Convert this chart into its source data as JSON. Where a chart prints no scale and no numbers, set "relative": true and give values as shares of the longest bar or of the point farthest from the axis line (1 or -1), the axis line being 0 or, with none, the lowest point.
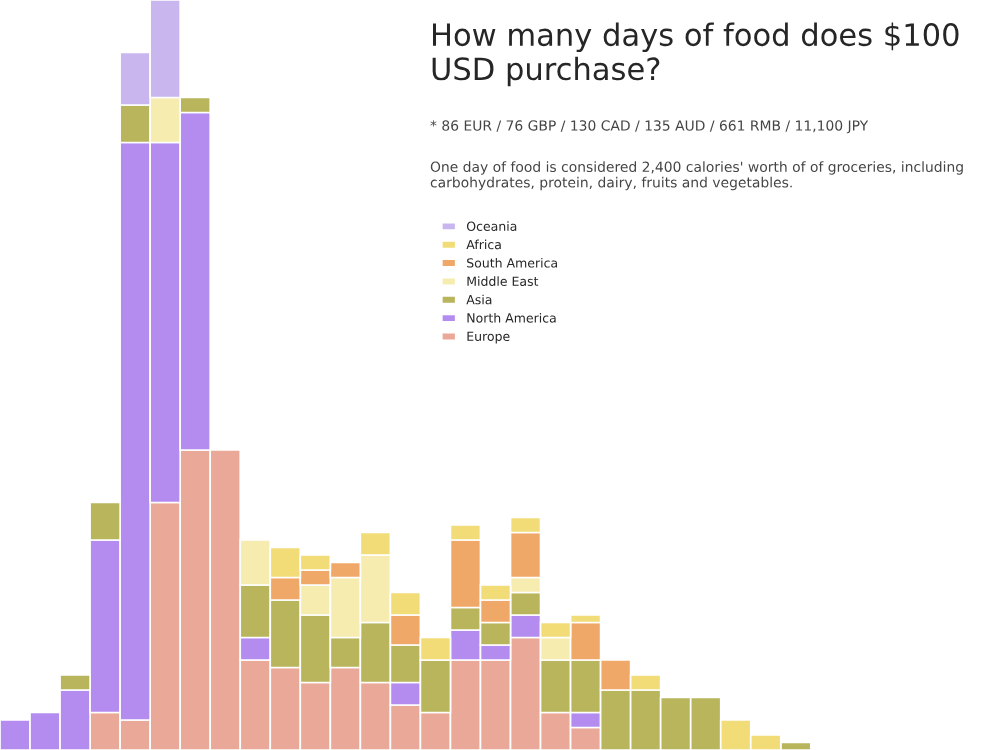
{
  "chart_data": {
    "type": "bar",
    "stacked": true,
    "relative": true,
    "title": "How many days of food does $100 USD purchase?",
    "annotations": [
      "* 86 EUR / 76 GBP / 130 CAD / 135 AUD / 661 RMB / 11,100 JPY",
      "One day of food is considered 2,400 calories' worth of of groceries, including carbohydrates, protein, dairy, fruits and vegetables."
    ],
    "categories": [
      null,
      null,
      null,
      null,
      null,
      null,
      null,
      null,
      null,
      null,
      null,
      null,
      null,
      null,
      null,
      null,
      null,
      null,
      null,
      null,
      null,
      null,
      null,
      null,
      null,
      null,
      null
    ],
    "legend": "top",
    "grid": false,
    "series": [
      {
        "name": "Europe",
        "color": "#eaa898",
        "values": [
          0,
          0,
          0,
          0.05,
          0.04,
          0.33,
          0.4,
          0.4,
          0.12,
          0.11,
          0.09,
          0.11,
          0.09,
          0.06,
          0.05,
          0.12,
          0.12,
          0.15,
          0.05,
          0.03,
          0,
          0,
          0,
          0,
          0,
          0,
          0
        ]
      },
      {
        "name": "North America",
        "color": "#b48cf0",
        "values": [
          0.04,
          0.05,
          0.08,
          0.23,
          0.77,
          0.48,
          0.45,
          0,
          0.03,
          0,
          0,
          0,
          0,
          0.03,
          0,
          0.04,
          0.02,
          0.03,
          0,
          0.02,
          0,
          0,
          0,
          0,
          0,
          0,
          0
        ]
      },
      {
        "name": "Asia",
        "color": "#b8b55c",
        "values": [
          0,
          0,
          0.02,
          0.05,
          0.05,
          0,
          0.02,
          0,
          0.07,
          0.09,
          0.09,
          0.04,
          0.08,
          0.05,
          0.07,
          0.03,
          0.03,
          0.03,
          0.07,
          0.07,
          0.08,
          0.08,
          0.07,
          0.07,
          0,
          0,
          0.01
        ]
      },
      {
        "name": "Middle East",
        "color": "#f7ecb0",
        "values": [
          0,
          0,
          0,
          0,
          0,
          0.06,
          0,
          0,
          0.06,
          0,
          0.04,
          0.08,
          0.09,
          0,
          0,
          0,
          0,
          0.02,
          0.03,
          0,
          0,
          0,
          0,
          0,
          0,
          0,
          0
        ]
      },
      {
        "name": "South America",
        "color": "#f0a868",
        "values": [
          0,
          0,
          0,
          0,
          0,
          0,
          0,
          0,
          0,
          0.03,
          0.02,
          0.02,
          0,
          0.04,
          0,
          0.09,
          0.03,
          0.06,
          0,
          0.05,
          0.04,
          0,
          0,
          0,
          0,
          0,
          0
        ]
      },
      {
        "name": "Africa",
        "color": "#f2dc78",
        "values": [
          0,
          0,
          0,
          0,
          0,
          0,
          0,
          0,
          0,
          0.04,
          0.02,
          0,
          0.03,
          0.03,
          0.03,
          0.02,
          0.02,
          0.02,
          0.02,
          0.01,
          0,
          0.02,
          0,
          0,
          0.04,
          0.02,
          0
        ]
      },
      {
        "name": "Oceania",
        "color": "#c9b6ef",
        "values": [
          0,
          0,
          0,
          0,
          0.07,
          0.13,
          0,
          0,
          0,
          0,
          0,
          0,
          0,
          0,
          0,
          0,
          0,
          0,
          0,
          0,
          0,
          0,
          0,
          0,
          0,
          0,
          0
        ]
      }
    ]
  }
}
